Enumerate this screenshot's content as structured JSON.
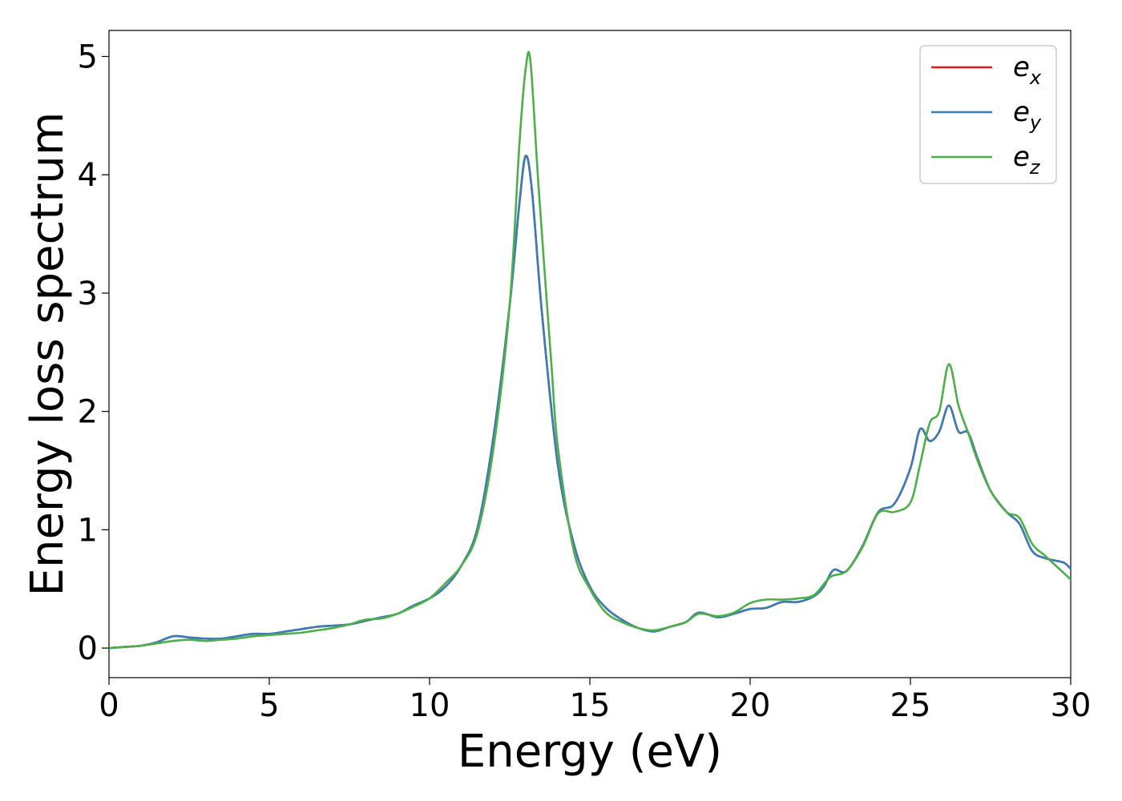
{
  "chart_data": {
    "type": "line",
    "title": "",
    "xlabel": "Energy (eV)",
    "ylabel": "Energy loss spectrum",
    "xlim": [
      0,
      30
    ],
    "ylim": [
      -0.25,
      5.22
    ],
    "xticks": [
      0,
      5,
      10,
      15,
      20,
      25,
      30
    ],
    "yticks": [
      0,
      1,
      2,
      3,
      4,
      5
    ],
    "grid": false,
    "legend_position": "top-right",
    "series": [
      {
        "name": "e_x",
        "label_base": "e",
        "label_sub": "x",
        "color": "#e41a1c",
        "points": [
          [
            0,
            0
          ],
          [
            0.5,
            0.01
          ],
          [
            1,
            0.02
          ],
          [
            1.5,
            0.05
          ],
          [
            2,
            0.1
          ],
          [
            2.5,
            0.09
          ],
          [
            3,
            0.08
          ],
          [
            3.5,
            0.08
          ],
          [
            4,
            0.1
          ],
          [
            4.5,
            0.12
          ],
          [
            5,
            0.12
          ],
          [
            5.5,
            0.14
          ],
          [
            6,
            0.16
          ],
          [
            6.5,
            0.18
          ],
          [
            7,
            0.19
          ],
          [
            7.5,
            0.2
          ],
          [
            8,
            0.23
          ],
          [
            8.5,
            0.26
          ],
          [
            9,
            0.29
          ],
          [
            9.5,
            0.36
          ],
          [
            10,
            0.42
          ],
          [
            10.5,
            0.52
          ],
          [
            11,
            0.7
          ],
          [
            11.5,
            1.02
          ],
          [
            12,
            1.8
          ],
          [
            12.5,
            2.9
          ],
          [
            12.8,
            3.75
          ],
          [
            13,
            4.16
          ],
          [
            13.2,
            3.85
          ],
          [
            13.5,
            2.85
          ],
          [
            14,
            1.55
          ],
          [
            14.5,
            0.88
          ],
          [
            15,
            0.52
          ],
          [
            15.5,
            0.34
          ],
          [
            16,
            0.24
          ],
          [
            16.5,
            0.17
          ],
          [
            17,
            0.14
          ],
          [
            17.5,
            0.18
          ],
          [
            18,
            0.22
          ],
          [
            18.4,
            0.3
          ],
          [
            19,
            0.26
          ],
          [
            19.5,
            0.29
          ],
          [
            20,
            0.33
          ],
          [
            20.5,
            0.34
          ],
          [
            21,
            0.39
          ],
          [
            21.5,
            0.39
          ],
          [
            22,
            0.44
          ],
          [
            22.3,
            0.52
          ],
          [
            22.6,
            0.66
          ],
          [
            23,
            0.65
          ],
          [
            23.5,
            0.86
          ],
          [
            24,
            1.15
          ],
          [
            24.5,
            1.22
          ],
          [
            25,
            1.52
          ],
          [
            25.3,
            1.85
          ],
          [
            25.6,
            1.75
          ],
          [
            25.9,
            1.83
          ],
          [
            26.2,
            2.05
          ],
          [
            26.5,
            1.83
          ],
          [
            26.8,
            1.82
          ],
          [
            27.1,
            1.6
          ],
          [
            27.5,
            1.33
          ],
          [
            28,
            1.15
          ],
          [
            28.4,
            1.05
          ],
          [
            28.8,
            0.82
          ],
          [
            29.2,
            0.76
          ],
          [
            29.5,
            0.74
          ],
          [
            29.8,
            0.72
          ],
          [
            30,
            0.67
          ]
        ]
      },
      {
        "name": "e_y",
        "label_base": "e",
        "label_sub": "y",
        "color": "#377eb8",
        "points": [
          [
            0,
            0
          ],
          [
            0.5,
            0.01
          ],
          [
            1,
            0.02
          ],
          [
            1.5,
            0.05
          ],
          [
            2,
            0.1
          ],
          [
            2.5,
            0.09
          ],
          [
            3,
            0.08
          ],
          [
            3.5,
            0.08
          ],
          [
            4,
            0.1
          ],
          [
            4.5,
            0.12
          ],
          [
            5,
            0.12
          ],
          [
            5.5,
            0.14
          ],
          [
            6,
            0.16
          ],
          [
            6.5,
            0.18
          ],
          [
            7,
            0.19
          ],
          [
            7.5,
            0.2
          ],
          [
            8,
            0.23
          ],
          [
            8.5,
            0.26
          ],
          [
            9,
            0.29
          ],
          [
            9.5,
            0.36
          ],
          [
            10,
            0.42
          ],
          [
            10.5,
            0.52
          ],
          [
            11,
            0.7
          ],
          [
            11.5,
            1.02
          ],
          [
            12,
            1.8
          ],
          [
            12.5,
            2.9
          ],
          [
            12.8,
            3.75
          ],
          [
            13,
            4.16
          ],
          [
            13.2,
            3.85
          ],
          [
            13.5,
            2.85
          ],
          [
            14,
            1.55
          ],
          [
            14.5,
            0.88
          ],
          [
            15,
            0.52
          ],
          [
            15.5,
            0.34
          ],
          [
            16,
            0.24
          ],
          [
            16.5,
            0.17
          ],
          [
            17,
            0.14
          ],
          [
            17.5,
            0.18
          ],
          [
            18,
            0.22
          ],
          [
            18.4,
            0.3
          ],
          [
            19,
            0.26
          ],
          [
            19.5,
            0.29
          ],
          [
            20,
            0.33
          ],
          [
            20.5,
            0.34
          ],
          [
            21,
            0.39
          ],
          [
            21.5,
            0.39
          ],
          [
            22,
            0.44
          ],
          [
            22.3,
            0.52
          ],
          [
            22.6,
            0.66
          ],
          [
            23,
            0.65
          ],
          [
            23.5,
            0.86
          ],
          [
            24,
            1.15
          ],
          [
            24.5,
            1.22
          ],
          [
            25,
            1.52
          ],
          [
            25.3,
            1.85
          ],
          [
            25.6,
            1.75
          ],
          [
            25.9,
            1.83
          ],
          [
            26.2,
            2.05
          ],
          [
            26.5,
            1.83
          ],
          [
            26.8,
            1.82
          ],
          [
            27.1,
            1.6
          ],
          [
            27.5,
            1.33
          ],
          [
            28,
            1.15
          ],
          [
            28.4,
            1.05
          ],
          [
            28.8,
            0.82
          ],
          [
            29.2,
            0.76
          ],
          [
            29.5,
            0.74
          ],
          [
            29.8,
            0.72
          ],
          [
            30,
            0.67
          ]
        ]
      },
      {
        "name": "e_z",
        "label_base": "e",
        "label_sub": "z",
        "color": "#4daf4a",
        "points": [
          [
            0,
            0
          ],
          [
            0.5,
            0.01
          ],
          [
            1,
            0.02
          ],
          [
            1.5,
            0.04
          ],
          [
            2,
            0.06
          ],
          [
            2.5,
            0.07
          ],
          [
            3,
            0.06
          ],
          [
            3.5,
            0.07
          ],
          [
            4,
            0.08
          ],
          [
            4.5,
            0.1
          ],
          [
            5,
            0.11
          ],
          [
            5.5,
            0.12
          ],
          [
            6,
            0.13
          ],
          [
            6.5,
            0.15
          ],
          [
            7,
            0.17
          ],
          [
            7.5,
            0.2
          ],
          [
            8,
            0.24
          ],
          [
            8.5,
            0.25
          ],
          [
            9,
            0.29
          ],
          [
            9.5,
            0.35
          ],
          [
            10,
            0.42
          ],
          [
            10.5,
            0.55
          ],
          [
            11,
            0.7
          ],
          [
            11.5,
            0.98
          ],
          [
            12,
            1.7
          ],
          [
            12.5,
            2.9
          ],
          [
            12.8,
            4.25
          ],
          [
            13,
            4.9
          ],
          [
            13.15,
            4.95
          ],
          [
            13.4,
            3.9
          ],
          [
            13.8,
            2.4
          ],
          [
            14,
            1.7
          ],
          [
            14.5,
            0.82
          ],
          [
            15,
            0.5
          ],
          [
            15.5,
            0.3
          ],
          [
            16,
            0.22
          ],
          [
            16.5,
            0.17
          ],
          [
            17,
            0.15
          ],
          [
            17.5,
            0.18
          ],
          [
            18,
            0.22
          ],
          [
            18.4,
            0.29
          ],
          [
            19,
            0.27
          ],
          [
            19.5,
            0.3
          ],
          [
            20,
            0.38
          ],
          [
            20.5,
            0.41
          ],
          [
            21,
            0.41
          ],
          [
            21.5,
            0.42
          ],
          [
            22,
            0.45
          ],
          [
            22.5,
            0.6
          ],
          [
            23,
            0.65
          ],
          [
            23.5,
            0.85
          ],
          [
            24,
            1.14
          ],
          [
            24.5,
            1.15
          ],
          [
            25,
            1.23
          ],
          [
            25.3,
            1.55
          ],
          [
            25.6,
            1.9
          ],
          [
            25.9,
            2.0
          ],
          [
            26.2,
            2.4
          ],
          [
            26.5,
            2.05
          ],
          [
            26.8,
            1.82
          ],
          [
            27.1,
            1.58
          ],
          [
            27.5,
            1.33
          ],
          [
            28,
            1.15
          ],
          [
            28.4,
            1.1
          ],
          [
            28.8,
            0.88
          ],
          [
            29.2,
            0.78
          ],
          [
            29.6,
            0.68
          ],
          [
            30,
            0.58
          ]
        ]
      }
    ]
  }
}
